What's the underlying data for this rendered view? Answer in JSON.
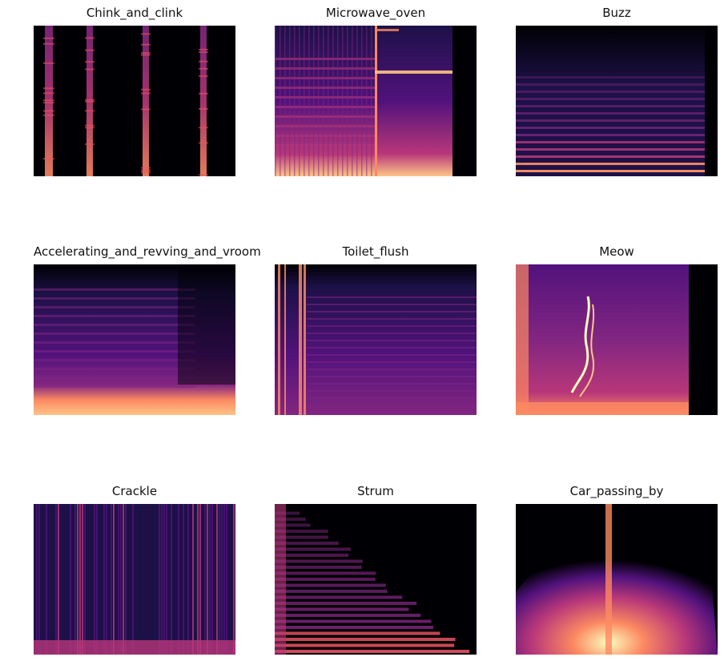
{
  "figure": {
    "panels": [
      {
        "title": "Chink_and_clink",
        "pattern": "transients"
      },
      {
        "title": "Microwave_oven",
        "pattern": "microwave"
      },
      {
        "title": "Buzz",
        "pattern": "harmonics"
      },
      {
        "title": "Accelerating_and_revving_and_vroom",
        "pattern": "lowband"
      },
      {
        "title": "Toilet_flush",
        "pattern": "flush"
      },
      {
        "title": "Meow",
        "pattern": "meow"
      },
      {
        "title": "Crackle",
        "pattern": "crackle"
      },
      {
        "title": "Strum",
        "pattern": "strum"
      },
      {
        "title": "Car_passing_by",
        "pattern": "carpass"
      }
    ],
    "colormap": [
      "#000004",
      "#1d1147",
      "#51127c",
      "#822681",
      "#b73779",
      "#e75263",
      "#fc8961",
      "#fec488",
      "#fcfdbf"
    ]
  }
}
